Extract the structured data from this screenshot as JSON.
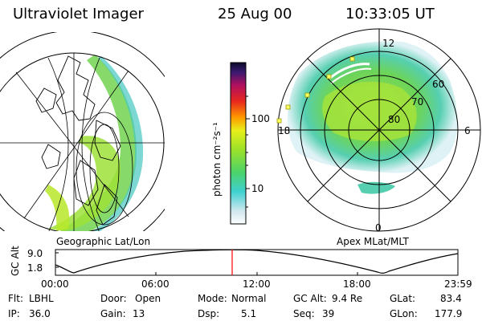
{
  "header": {
    "instrument": "Ultraviolet Imager",
    "date": "25 Aug 00",
    "time": "10:33:05 UT"
  },
  "colorbar": {
    "label": "photon cm⁻²s⁻¹",
    "ticks": [
      "100",
      "10"
    ]
  },
  "left_map": {
    "caption": "Geographic Lat/Lon"
  },
  "right_map": {
    "caption": "Apex MLat/MLT",
    "mlt_labels": {
      "top": "12",
      "left": "18",
      "right": "6",
      "bottom": "0"
    },
    "mlat_labels": [
      "60",
      "70",
      "80"
    ]
  },
  "altitude_plot": {
    "ylabel": "GC Alt",
    "yticks": [
      "9.0",
      "1.8"
    ],
    "xticks": [
      "00:00",
      "06:00",
      "12:00",
      "18:00",
      "23:59"
    ],
    "marker_time": "10:33"
  },
  "status": {
    "filter_label": "Flt:",
    "filter_value": "LBHL",
    "ip_label": "IP:",
    "ip_value": "36.0",
    "door_label": "Door:",
    "door_value": "Open",
    "gain_label": "Gain:",
    "gain_value": "13",
    "mode_label": "Mode:",
    "mode_value": "Normal",
    "dsp_label": "Dsp:",
    "dsp_value": "5.1",
    "gcalt_label": "GC Alt:",
    "gcalt_value": "9.4 Re",
    "seq_label": "Seq:",
    "seq_value": "39",
    "glat_label": "GLat:",
    "glat_value": "83.4",
    "glon_label": "GLon:",
    "glon_value": "177.9"
  },
  "colors": {
    "accent_line": "#ff0000",
    "dots": "#ffff66"
  }
}
